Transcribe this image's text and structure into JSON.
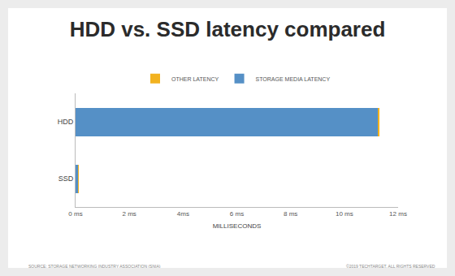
{
  "chart_data": {
    "type": "bar",
    "title": "HDD vs. SSD latency compared",
    "orientation": "horizontal",
    "stacked": true,
    "categories": [
      "HDD",
      "SSD"
    ],
    "series": [
      {
        "name": "STORAGE MEDIA LATENCY",
        "color": "#5590c6",
        "values": [
          11.25,
          0.08
        ]
      },
      {
        "name": "OTHER LATENCY",
        "color": "#f2b21f",
        "values": [
          0.05,
          0.04
        ]
      }
    ],
    "x_label": "MILLISECONDS",
    "xlim": [
      0,
      12
    ],
    "xticks": [
      {
        "value": 0,
        "label": "0 ms"
      },
      {
        "value": 2,
        "label": "2 ms"
      },
      {
        "value": 4,
        "label": "4ms"
      },
      {
        "value": 6,
        "label": "6 ms"
      },
      {
        "value": 8,
        "label": "8 ms"
      },
      {
        "value": 10,
        "label": "10 ms"
      },
      {
        "value": 12,
        "label": "12 ms"
      }
    ],
    "grid": false,
    "legend": "top",
    "annotations": [
      "SOURCE: STORAGE NETWORKING INDUSTRY ASSOCIATION (SNIA)",
      "©2019 TECHTARGET. ALL RIGHTS RESERVED"
    ]
  }
}
